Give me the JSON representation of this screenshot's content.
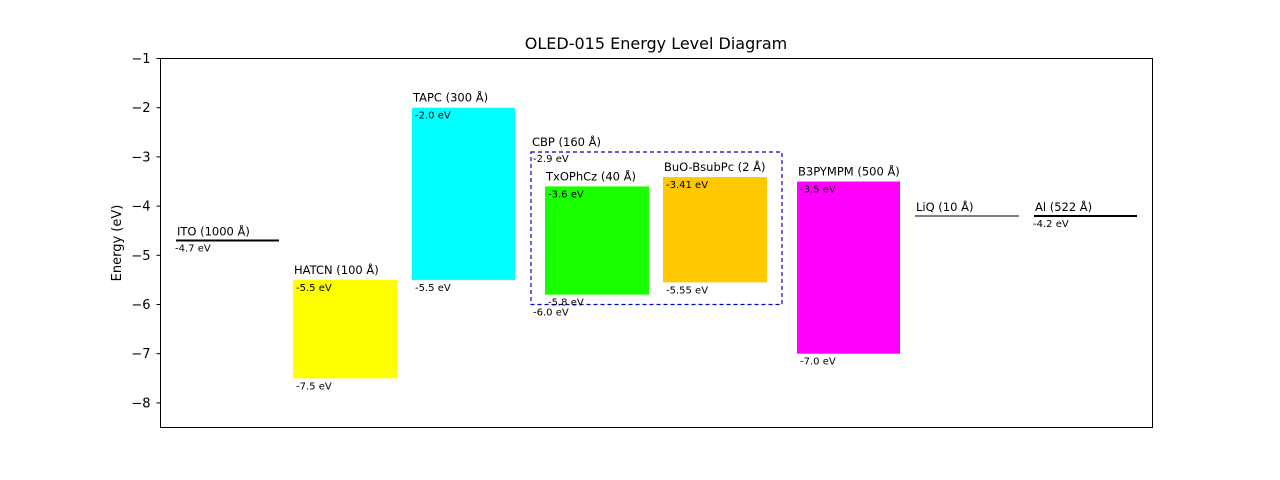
{
  "chart_data": {
    "type": "energy-level-diagram",
    "title": "OLED-015 Energy Level Diagram",
    "ylabel": "Energy (eV)",
    "ylim": [
      -8.5,
      -1
    ],
    "yticks": [
      -1,
      -2,
      -3,
      -4,
      -5,
      -6,
      -7,
      -8
    ],
    "ytick_labels": [
      "−1",
      "−2",
      "−3",
      "−4",
      "−5",
      "−6",
      "−7",
      "−8"
    ],
    "grid": false,
    "layers": [
      {
        "name": "ITO (1000 Å)",
        "kind": "electrode",
        "level": -4.7,
        "level_label": "-4.7 eV",
        "color": "#000000"
      },
      {
        "name": "HATCN (100 Å)",
        "kind": "bar",
        "top": -5.5,
        "bottom": -7.5,
        "top_label": "-5.5 eV",
        "bottom_label": "-7.5 eV",
        "color": "#ffff00"
      },
      {
        "name": "TAPC (300 Å)",
        "kind": "bar",
        "top": -2.0,
        "bottom": -5.5,
        "top_label": "-2.0 eV",
        "bottom_label": "-5.5 eV",
        "color": "#00ffff"
      },
      {
        "name": "CBP (160 Å)",
        "kind": "host",
        "top": -2.9,
        "bottom": -6.0,
        "top_label": "-2.9 eV",
        "bottom_label": "-6.0 eV",
        "color": "#0000cc"
      },
      {
        "name": "TxOPhCz (40 Å)",
        "kind": "bar",
        "top": -3.6,
        "bottom": -5.8,
        "top_label": "-3.6 eV",
        "bottom_label": "-5.8 eV",
        "color": "#1aff00"
      },
      {
        "name": "BuO-BsubPc (2 Å)",
        "kind": "bar",
        "top": -3.41,
        "bottom": -5.55,
        "top_label": "-3.41 eV",
        "bottom_label": "-5.55 eV",
        "color": "#ffc800"
      },
      {
        "name": "B3PYMPM (500 Å)",
        "kind": "bar",
        "top": -3.5,
        "bottom": -7.0,
        "top_label": "-3.5 eV",
        "bottom_label": "-7.0 eV",
        "color": "#ff00ff"
      },
      {
        "name": "LiQ (10 Å)",
        "kind": "electrode",
        "level": -4.2,
        "level_label": "",
        "color": "#808080"
      },
      {
        "name": "Al (522 Å)",
        "kind": "electrode",
        "level": -4.2,
        "level_label": "-4.2 eV",
        "color": "#000000"
      }
    ]
  }
}
